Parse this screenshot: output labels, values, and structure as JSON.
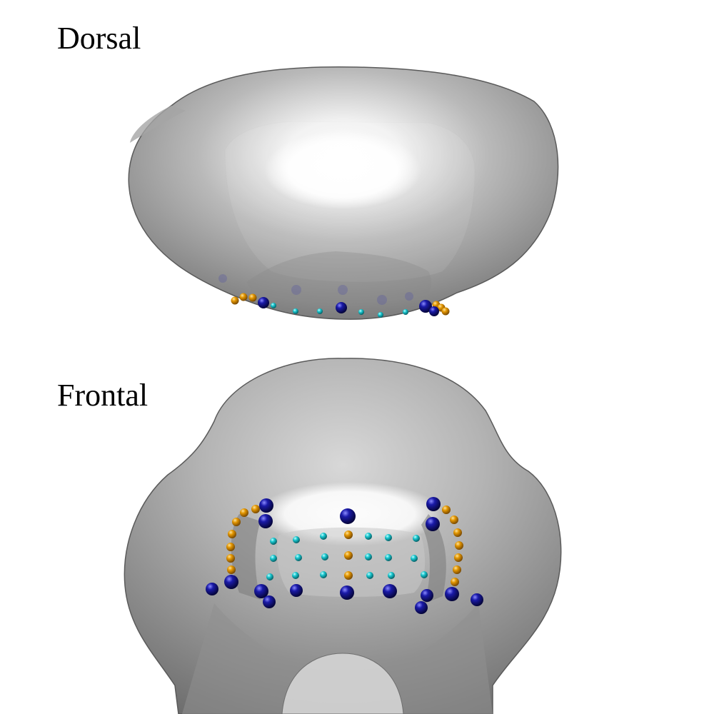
{
  "views": {
    "dorsal": {
      "label": "Dorsal"
    },
    "frontal": {
      "label": "Frontal"
    }
  },
  "colors": {
    "background": "#ffffff",
    "surface": "#9a9a9a",
    "surface_highlight": "#ffffff",
    "landmark_fixed": "#0a0a80",
    "landmark_curve": "#e29500",
    "landmark_surface": "#19c7cf"
  },
  "landmark_types": [
    "fixed-landmark",
    "curve-semilandmark",
    "surface-semilandmark"
  ]
}
